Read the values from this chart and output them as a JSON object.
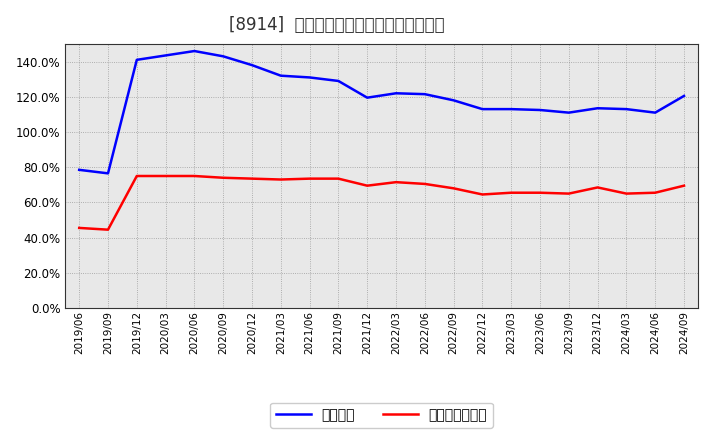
{
  "title": "[8914]  固定比率、固定長期適合率の推移",
  "x_labels": [
    "2019/06",
    "2019/09",
    "2019/12",
    "2020/03",
    "2020/06",
    "2020/09",
    "2020/12",
    "2021/03",
    "2021/06",
    "2021/09",
    "2021/12",
    "2022/03",
    "2022/06",
    "2022/09",
    "2022/12",
    "2023/03",
    "2023/06",
    "2023/09",
    "2023/12",
    "2024/03",
    "2024/06",
    "2024/09"
  ],
  "fixed_ratio": [
    78.5,
    76.5,
    141.0,
    143.5,
    146.0,
    143.0,
    138.0,
    132.0,
    131.0,
    129.0,
    119.5,
    122.0,
    121.5,
    118.0,
    113.0,
    113.0,
    112.5,
    111.0,
    113.5,
    113.0,
    111.0,
    120.5
  ],
  "fixed_long_ratio": [
    45.5,
    44.5,
    75.0,
    75.0,
    75.0,
    74.0,
    73.5,
    73.0,
    73.5,
    73.5,
    69.5,
    71.5,
    70.5,
    68.0,
    64.5,
    65.5,
    65.5,
    65.0,
    68.5,
    65.0,
    65.5,
    69.5
  ],
  "line1_color": "#0000ff",
  "line2_color": "#ff0000",
  "line1_label": "固定比率",
  "line2_label": "固定長期適合率",
  "ylim": [
    0,
    150
  ],
  "yticks": [
    0,
    20,
    40,
    60,
    80,
    100,
    120,
    140
  ],
  "plot_bg_color": "#e8e8e8",
  "background_color": "#ffffff",
  "grid_color": "#888888",
  "title_fontsize": 12,
  "legend_fontsize": 10,
  "line_width": 1.8
}
